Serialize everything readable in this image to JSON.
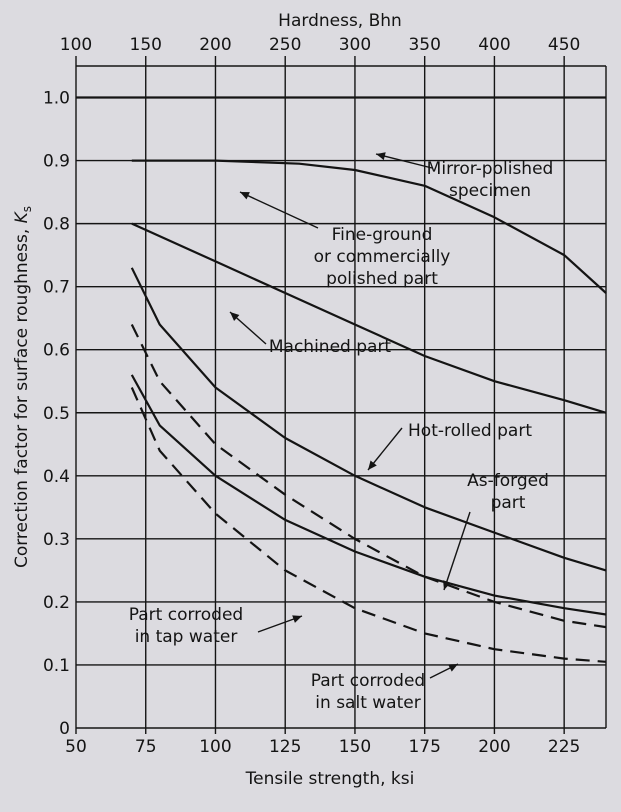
{
  "chart_data": {
    "type": "line",
    "top_axis_label": "Hardness, Bhn",
    "top_ticks": [
      "100",
      "150",
      "200",
      "250",
      "300",
      "350",
      "400",
      "450"
    ],
    "top_tick_values": [
      100,
      150,
      200,
      250,
      300,
      350,
      400,
      450
    ],
    "xlabel": "Tensile strength, ksi",
    "x_ticks": [
      "50",
      "75",
      "100",
      "125",
      "150",
      "175",
      "200",
      "225"
    ],
    "x_tick_values": [
      50,
      75,
      100,
      125,
      150,
      175,
      200,
      225
    ],
    "ylabel": "Correction factor for surface roughness, K_s",
    "y_ticks": [
      "0",
      "0.1",
      "0.2",
      "0.3",
      "0.4",
      "0.5",
      "0.6",
      "0.7",
      "0.8",
      "0.9",
      "1.0"
    ],
    "y_tick_values": [
      0,
      0.1,
      0.2,
      0.3,
      0.4,
      0.5,
      0.6,
      0.7,
      0.8,
      0.9,
      1.0
    ],
    "xlim": [
      50,
      240
    ],
    "ylim": [
      0,
      1.05
    ],
    "grid": true,
    "colors": {
      "paper": "#dcdbe0",
      "ink": "#141414"
    },
    "series": [
      {
        "label_lines": [
          "Mirror-polished",
          "specimen"
        ],
        "style": "solid",
        "x": [
          50,
          240
        ],
        "y": [
          1.0,
          1.0
        ]
      },
      {
        "label_lines": [
          "Fine-ground",
          "or commercially",
          "polished part"
        ],
        "style": "solid",
        "x": [
          70,
          100,
          130,
          150,
          175,
          200,
          225,
          240
        ],
        "y": [
          0.9,
          0.9,
          0.895,
          0.885,
          0.86,
          0.81,
          0.75,
          0.69
        ]
      },
      {
        "label_lines": [
          "Machined part"
        ],
        "style": "solid",
        "x": [
          70,
          75,
          100,
          125,
          150,
          175,
          200,
          225,
          240
        ],
        "y": [
          0.8,
          0.79,
          0.74,
          0.69,
          0.64,
          0.59,
          0.55,
          0.52,
          0.5
        ]
      },
      {
        "label_lines": [
          "Hot-rolled part"
        ],
        "style": "solid",
        "x": [
          70,
          80,
          100,
          125,
          150,
          175,
          200,
          225,
          240
        ],
        "y": [
          0.73,
          0.64,
          0.54,
          0.46,
          0.4,
          0.35,
          0.31,
          0.27,
          0.25
        ]
      },
      {
        "label_lines": [
          "As-forged",
          "part"
        ],
        "style": "solid",
        "x": [
          70,
          80,
          100,
          125,
          150,
          175,
          200,
          225,
          240
        ],
        "y": [
          0.56,
          0.48,
          0.4,
          0.33,
          0.28,
          0.24,
          0.21,
          0.19,
          0.18
        ]
      },
      {
        "label_lines": [
          "Part corroded",
          "in tap water"
        ],
        "style": "dashed",
        "x": [
          70,
          80,
          100,
          125,
          150,
          175,
          200,
          225,
          240
        ],
        "y": [
          0.64,
          0.55,
          0.45,
          0.37,
          0.3,
          0.24,
          0.2,
          0.17,
          0.16
        ]
      },
      {
        "label_lines": [
          "Part corroded",
          "in salt water"
        ],
        "style": "dashed",
        "x": [
          70,
          80,
          100,
          125,
          150,
          175,
          200,
          225,
          240
        ],
        "y": [
          0.54,
          0.44,
          0.34,
          0.25,
          0.19,
          0.15,
          0.125,
          0.11,
          0.105
        ]
      }
    ]
  }
}
